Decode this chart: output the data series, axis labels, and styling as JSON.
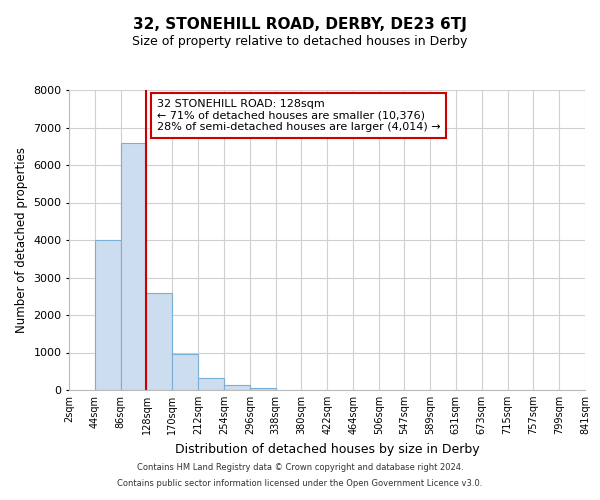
{
  "title": "32, STONEHILL ROAD, DERBY, DE23 6TJ",
  "subtitle": "Size of property relative to detached houses in Derby",
  "xlabel": "Distribution of detached houses by size in Derby",
  "ylabel": "Number of detached properties",
  "bin_edges": [
    2,
    44,
    86,
    128,
    170,
    212,
    254,
    296,
    338,
    380,
    422,
    464,
    506,
    547,
    589,
    631,
    673,
    715,
    757,
    799,
    841
  ],
  "bar_heights": [
    0,
    4000,
    6600,
    2600,
    950,
    320,
    130,
    50,
    0,
    0,
    0,
    0,
    0,
    0,
    0,
    0,
    0,
    0,
    0,
    0
  ],
  "bar_color": "#ccddf0",
  "bar_edge_color": "#7aaed4",
  "vline_x": 128,
  "vline_color": "#cc0000",
  "ylim": [
    0,
    8000
  ],
  "annotation_title": "32 STONEHILL ROAD: 128sqm",
  "annotation_line1": "← 71% of detached houses are smaller (10,376)",
  "annotation_line2": "28% of semi-detached houses are larger (4,014) →",
  "annotation_box_color": "#ffffff",
  "annotation_box_edge_color": "#cc0000",
  "footer_line1": "Contains HM Land Registry data © Crown copyright and database right 2024.",
  "footer_line2": "Contains public sector information licensed under the Open Government Licence v3.0.",
  "tick_labels": [
    "2sqm",
    "44sqm",
    "86sqm",
    "128sqm",
    "170sqm",
    "212sqm",
    "254sqm",
    "296sqm",
    "338sqm",
    "380sqm",
    "422sqm",
    "464sqm",
    "506sqm",
    "547sqm",
    "589sqm",
    "631sqm",
    "673sqm",
    "715sqm",
    "757sqm",
    "799sqm",
    "841sqm"
  ],
  "yticks": [
    0,
    1000,
    2000,
    3000,
    4000,
    5000,
    6000,
    7000,
    8000
  ],
  "background_color": "#ffffff",
  "grid_color": "#d0d0d0"
}
